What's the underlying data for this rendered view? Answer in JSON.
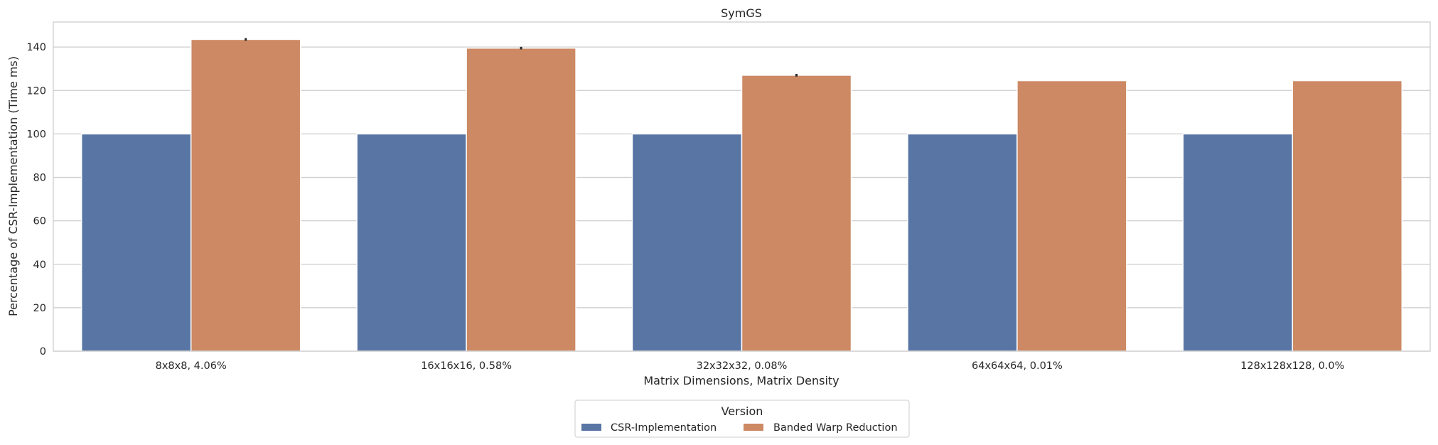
{
  "chart_data": {
    "type": "bar",
    "title": "SymGS",
    "xlabel": "Matrix Dimensions, Matrix Density",
    "ylabel": "Percentage of CSR-Implementation (Time ms)",
    "categories": [
      "8x8x8, 4.06%",
      "16x16x16, 0.58%",
      "32x32x32, 0.08%",
      "64x64x64, 0.01%",
      "128x128x128, 0.0%"
    ],
    "series": [
      {
        "name": "CSR-Implementation",
        "color": "#5875a4",
        "values": [
          100,
          100,
          100,
          100,
          100
        ],
        "errors": [
          0,
          0,
          0,
          0,
          0
        ]
      },
      {
        "name": "Banded Warp Reduction",
        "color": "#cc8963",
        "values": [
          143.5,
          139.5,
          127,
          124.5,
          124.5
        ],
        "errors": [
          0.6,
          0.6,
          0.6,
          0,
          0
        ]
      }
    ],
    "ylim": [
      0,
      151.5
    ],
    "yticks": [
      0,
      20,
      40,
      60,
      80,
      100,
      120,
      140
    ],
    "grid": "horizontal",
    "legend": {
      "title": "Version",
      "placement": "bottom-center"
    }
  }
}
